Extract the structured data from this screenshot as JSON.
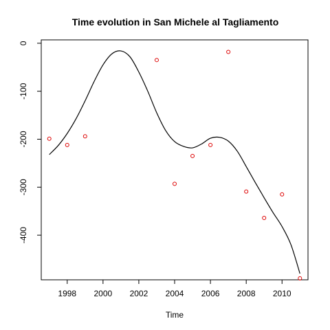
{
  "chart_data": {
    "type": "scatter",
    "title": "Time evolution in San Michele al Tagliamento",
    "xlabel": "Time",
    "ylabel": "",
    "xlim": [
      1996.55,
      2011.45
    ],
    "ylim": [
      -493,
      7
    ],
    "grid": false,
    "legend": "none",
    "x_ticks": [
      1998,
      2000,
      2002,
      2004,
      2006,
      2008,
      2010
    ],
    "x_tick_labels": [
      "1998",
      "2000",
      "2002",
      "2004",
      "2006",
      "2008",
      "2010"
    ],
    "y_ticks": [
      0,
      -100,
      -200,
      -300,
      -400
    ],
    "y_tick_labels": [
      "0",
      "-100",
      "-200",
      "-300",
      "-400"
    ],
    "points": {
      "color": "#dd0000",
      "x": [
        1997,
        1998,
        1999,
        2003,
        2004,
        2005,
        2006,
        2007,
        2008,
        2009,
        2010,
        2011
      ],
      "y": [
        -199,
        -212,
        -194,
        -35,
        -293,
        -235,
        -212,
        -18,
        -309,
        -364,
        -315,
        -490
      ]
    },
    "smooth_line": {
      "color": "#000000",
      "x": [
        1997,
        1997.5,
        1998,
        1998.5,
        1999,
        1999.5,
        2000,
        2000.5,
        2001,
        2001.5,
        2002,
        2002.5,
        2003,
        2003.5,
        2004,
        2004.5,
        2005,
        2005.5,
        2006,
        2006.5,
        2007,
        2007.5,
        2008,
        2008.5,
        2009,
        2009.5,
        2010,
        2010.5,
        2011
      ],
      "y": [
        -232,
        -213,
        -188,
        -157,
        -120,
        -80,
        -45,
        -22,
        -16,
        -28,
        -60,
        -100,
        -145,
        -182,
        -205,
        -215,
        -218,
        -210,
        -198,
        -196,
        -204,
        -225,
        -257,
        -290,
        -322,
        -353,
        -382,
        -420,
        -480
      ]
    }
  }
}
